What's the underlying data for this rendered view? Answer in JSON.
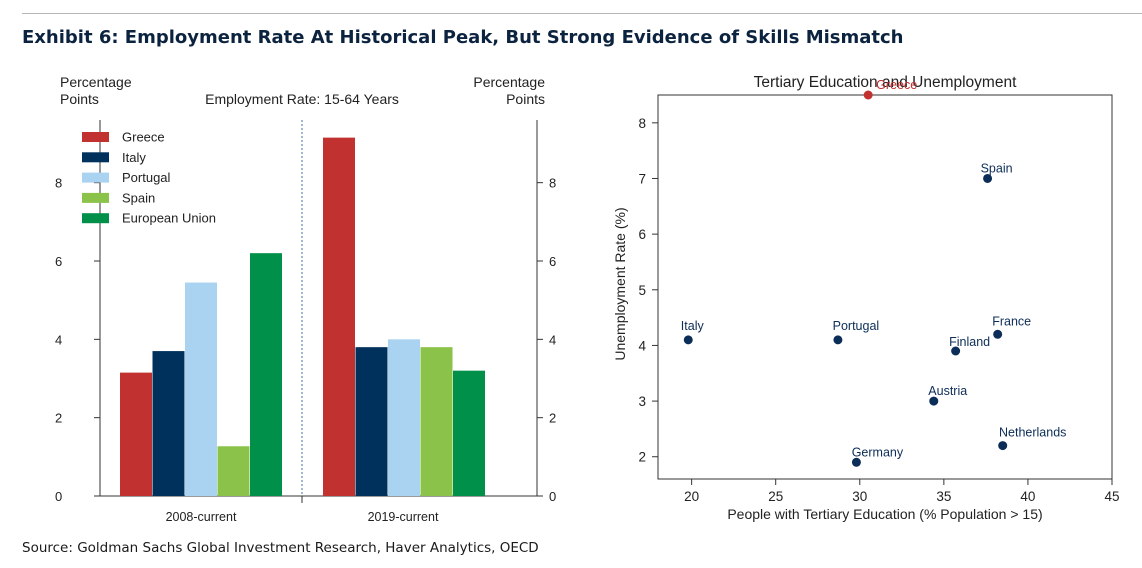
{
  "exhibit": {
    "title": "Exhibit 6: Employment Rate At Historical Peak, But Strong Evidence of Skills Mismatch",
    "source": "Source: Goldman Sachs Global Investment Research, Haver Analytics, OECD"
  },
  "colors": {
    "greece": "#c0312f",
    "italy": "#00315c",
    "portugal": "#a9d3f0",
    "spain": "#8bc34a",
    "eu": "#00904a",
    "scatter_point": "#0c2d57",
    "scatter_highlight": "#c0312f"
  },
  "chart_data": [
    {
      "type": "bar",
      "title": "Employment Rate: 15-64 Years",
      "ylabel_left": [
        "Percentage",
        "Points"
      ],
      "ylabel_right": [
        "Percentage",
        "Points"
      ],
      "categories": [
        "2008-current",
        "2019-current"
      ],
      "ylim": [
        0,
        9.6
      ],
      "yticks": [
        0,
        2,
        4,
        6,
        8
      ],
      "legend_position": "top-left",
      "series": [
        {
          "name": "Greece",
          "values": [
            3.15,
            9.15
          ]
        },
        {
          "name": "Italy",
          "values": [
            3.7,
            3.8
          ]
        },
        {
          "name": "Portugal",
          "values": [
            5.45,
            4.0
          ]
        },
        {
          "name": "Spain",
          "values": [
            1.27,
            3.8
          ]
        },
        {
          "name": "European Union",
          "values": [
            6.2,
            3.2
          ]
        }
      ]
    },
    {
      "type": "scatter",
      "title": "Tertiary Education and Unemployment",
      "xlabel": "People with Tertiary Education (% Population > 15)",
      "ylabel": "Unemployment Rate (%)",
      "xlim": [
        18,
        45
      ],
      "ylim": [
        1.6,
        8.5
      ],
      "xticks": [
        20,
        25,
        30,
        35,
        40,
        45
      ],
      "yticks": [
        2,
        3,
        4,
        5,
        6,
        7,
        8
      ],
      "points": [
        {
          "label": "Greece",
          "x": 30.5,
          "y": 8.5,
          "highlight": true
        },
        {
          "label": "Spain",
          "x": 37.6,
          "y": 7.0
        },
        {
          "label": "Italy",
          "x": 19.8,
          "y": 4.1
        },
        {
          "label": "Portugal",
          "x": 28.7,
          "y": 4.1
        },
        {
          "label": "France",
          "x": 38.2,
          "y": 4.2
        },
        {
          "label": "Finland",
          "x": 35.7,
          "y": 3.9
        },
        {
          "label": "Austria",
          "x": 34.4,
          "y": 3.0
        },
        {
          "label": "Netherlands",
          "x": 38.5,
          "y": 2.2
        },
        {
          "label": "Germany",
          "x": 29.8,
          "y": 1.9
        }
      ]
    }
  ]
}
